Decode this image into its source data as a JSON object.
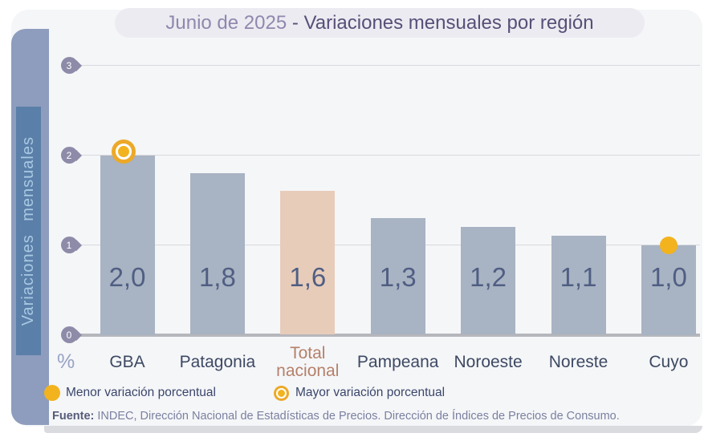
{
  "title": {
    "prefix": "Junio de 2025 ",
    "main": "- Variaciones mensuales por región"
  },
  "chart_data": {
    "type": "bar",
    "title": "Junio de 2025 - Variaciones mensuales por región",
    "categories": [
      "GBA",
      "Patagonia",
      "Total nacional",
      "Pampeana",
      "Noroeste",
      "Noreste",
      "Cuyo"
    ],
    "values": [
      2.0,
      1.8,
      1.6,
      1.3,
      1.2,
      1.1,
      1.0
    ],
    "value_labels": [
      "2,0",
      "1,8",
      "1,6",
      "1,3",
      "1,2",
      "1,1",
      "1,0"
    ],
    "ylabel": "Variaciones mensuales",
    "xlabel": "",
    "unit_label": "%",
    "yticks": [
      0,
      1,
      2,
      3
    ],
    "ylim": [
      0,
      3
    ],
    "grid": true,
    "legend_position": "bottom",
    "highlight_category": "Total nacional",
    "point_markers": [
      {
        "category": "GBA",
        "value": 2.0,
        "style": "ringed-circle",
        "meaning": "Mayor variación porcentual"
      },
      {
        "category": "Cuyo",
        "value": 1.0,
        "style": "solid-circle",
        "meaning": "Menor variación porcentual"
      }
    ]
  },
  "legend": {
    "items": [
      {
        "icon": "solid-circle",
        "label": "Menor variación porcentual"
      },
      {
        "icon": "ringed-circle",
        "label": "Mayor variación porcentual"
      }
    ]
  },
  "footer": {
    "bold": "Fuente:",
    "text": " INDEC, Dirección Nacional de Estadísticas de Precios. Dirección de Índices de Precios de Consumo."
  },
  "colors": {
    "bar": "#a8b3c3",
    "bar_highlight": "#e7ccba",
    "marker_yellow": "#f2b31f",
    "marker_ring": "#eca928",
    "sidebar": "#8e9dbd",
    "sidebar_inner": "#5a7fa9",
    "axis_marker": "#8e8ba9",
    "value_label": "#505e83",
    "category_label": "#3d4963",
    "highlight_label": "#b5806a",
    "title_prefix": "#9187ae",
    "title_main": "#584f78"
  }
}
